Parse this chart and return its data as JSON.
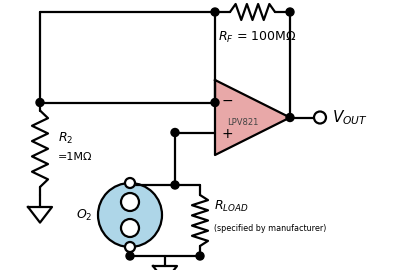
{
  "bg_color": "#ffffff",
  "op_amp_color": "#e8a8a8",
  "sensor_color": "#aed6e8",
  "line_color": "#000000",
  "line_width": 1.6,
  "ic_label": "LPV821",
  "rf_text": "R",
  "rf_sub": "F",
  "rf_val": " = 100MΩ",
  "r2_line1": "R",
  "r2_sub": "2",
  "r2_line2": "=1MΩ",
  "rload_text": "R",
  "rload_sub": "LOAD",
  "rload_note": "(specified by manufacturer)",
  "vout_text": "V",
  "vout_sub": "OUT",
  "o2_text": "O",
  "o2_sub": "2"
}
